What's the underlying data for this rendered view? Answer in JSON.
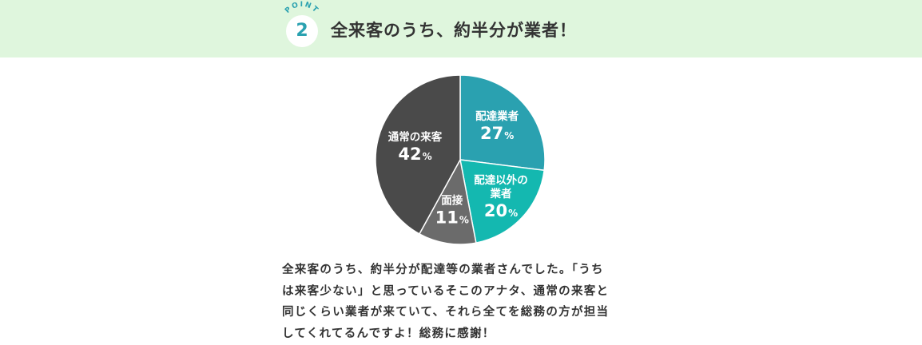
{
  "header": {
    "badge_label": "POINT",
    "badge_number": "2",
    "title": "全来客のうち、約半分が業者！"
  },
  "colors": {
    "header_bg": "#dff6dd",
    "accent": "#2aa1b0",
    "text": "#333333"
  },
  "chart_data": {
    "type": "pie",
    "start_angle_deg": 0,
    "direction": "clockwise",
    "unit": "%",
    "slices": [
      {
        "label_lines": [
          "配達業者"
        ],
        "value": 27,
        "color": "#2aa1b0"
      },
      {
        "label_lines": [
          "配達以外の",
          "業者"
        ],
        "value": 20,
        "color": "#14b8b0"
      },
      {
        "label_lines": [
          "面接"
        ],
        "value": 11,
        "color": "#6b6b6b"
      },
      {
        "label_lines": [
          "通常の来客"
        ],
        "value": 42,
        "color": "#4a4a4a"
      }
    ]
  },
  "description": {
    "lines": [
      "全来客のうち、約半分が配達等の業者さんでした。「うち",
      "は来客少ない」と思っているそこのアナタ、通常の来客と",
      "同じくらい業者が来ていて、それら全てを総務の方が担当",
      "してくれてるんですよ！総務に感謝！"
    ]
  }
}
